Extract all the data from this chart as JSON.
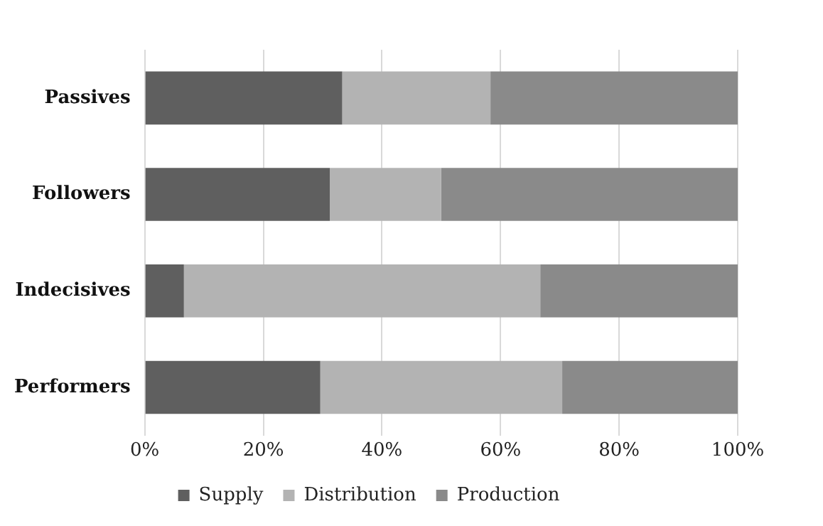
{
  "chart_data": {
    "type": "bar",
    "orientation": "horizontal",
    "stacked": true,
    "categories": [
      "Passives",
      "Followers",
      "Indecisives",
      "Performers"
    ],
    "series": [
      {
        "name": "Supply",
        "color": "#5f5f5f",
        "values": [
          33.3,
          31.2,
          6.6,
          29.6
        ]
      },
      {
        "name": "Distribution",
        "color": "#b3b3b3",
        "values": [
          25.0,
          18.8,
          60.1,
          40.8
        ]
      },
      {
        "name": "Production",
        "color": "#8a8a8a",
        "values": [
          41.7,
          50.0,
          33.3,
          29.6
        ]
      }
    ],
    "xlim": [
      0,
      100
    ],
    "xticks": [
      {
        "value": 0,
        "label": "0%"
      },
      {
        "value": 20,
        "label": "20%"
      },
      {
        "value": 40,
        "label": "40%"
      },
      {
        "value": 60,
        "label": "60%"
      },
      {
        "value": 80,
        "label": "80%"
      },
      {
        "value": 100,
        "label": "100%"
      }
    ],
    "grid": "x",
    "legend": "bottom"
  }
}
